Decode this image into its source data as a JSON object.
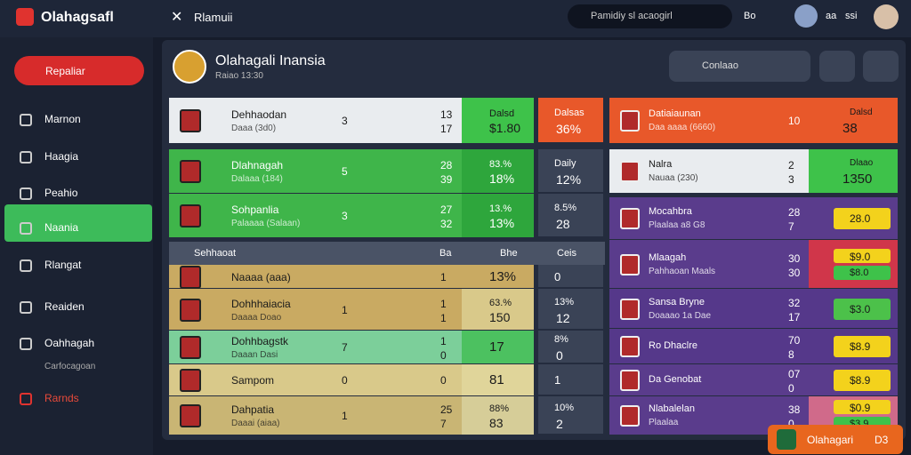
{
  "topbar": {
    "logo": "Olahagsafl",
    "tab": "Rlamuii",
    "search": "Pamidiy sl acaogirl",
    "icons": [
      "Bo",
      "aa",
      "ssi"
    ]
  },
  "sidebar": {
    "button": "Repaliar",
    "items": [
      {
        "label": "Marnon"
      },
      {
        "label": "Haagia"
      },
      {
        "label": "Peahio"
      },
      {
        "label": "Naania"
      },
      {
        "label": "Rlangat"
      },
      {
        "label": "Reaiden"
      },
      {
        "label": "Oahhagah",
        "sub": "Carfocagoan"
      },
      {
        "label": "Rarnds"
      }
    ]
  },
  "header": {
    "title": "Olahagali Inansia",
    "subtitle": "Raiao 13:30",
    "dropdown": "Conlaao"
  },
  "left_table": {
    "rows": [
      {
        "name": "Dehhaodan",
        "sub": "Daaa (3d0)",
        "n": "3",
        "a": "13",
        "b": "17",
        "v1": "Dalsd",
        "v2": "$1.80"
      },
      {
        "name": "Dlahnagah",
        "sub": "Dalaaa (184)",
        "n": "5",
        "a": "28",
        "b": "39",
        "v1": "83.%",
        "v2": "18%"
      },
      {
        "name": "Sohpanlia",
        "sub": "Palaaaa (Salaan)",
        "n": "3",
        "a": "27",
        "b": "32",
        "v1": "13.%",
        "v2": "13%"
      },
      {
        "name": "Naaaa (aaa)",
        "a": "1",
        "v1": "13%"
      },
      {
        "name": "Dohhhaiacia",
        "sub": "Daaaa Doao",
        "n": "1",
        "a": "1",
        "b": "1",
        "v1": "63.%",
        "v2": "150"
      },
      {
        "name": "Dohhbagstk",
        "sub": "Daaan Dasi",
        "n": "7",
        "a": "1",
        "b": "0",
        "v1": "17"
      },
      {
        "name": "Sampom",
        "n": "0",
        "a": "0",
        "v1": "81"
      },
      {
        "name": "Dahpatia",
        "sub": "Daaai (aiaa)",
        "n": "1",
        "a": "25",
        "b": "7",
        "v1": "88%",
        "v2": "83"
      }
    ],
    "section": {
      "label": "Sehhaoat",
      "c1": "Ba",
      "c2": "Bhe",
      "c3": "Ceis"
    }
  },
  "middle": [
    {
      "top": "Dalsas",
      "bottom": "36%"
    },
    {
      "top": "Daily",
      "bottom": "12%"
    },
    {
      "top": "8.5%",
      "bottom": "28"
    },
    {
      "top": "0"
    },
    {
      "top": "13%",
      "bottom": "12"
    },
    {
      "top": "8%",
      "bottom": "0"
    },
    {
      "top": "1"
    },
    {
      "top": "10%",
      "bottom": "2"
    }
  ],
  "right_table": [
    {
      "name": "Datiaiaunan",
      "sub": "Daa aaaa (6660)",
      "a": "10",
      "badge": "Dalsd",
      "badge2": "38"
    },
    {
      "name": "Nalra",
      "sub": "Nauaa (230)",
      "a": "2",
      "b": "3",
      "badge": "Dlaao",
      "badge2": "1350"
    },
    {
      "name": "Mocahbra",
      "sub": "Plaalaa a8 G8",
      "a": "28",
      "b": "7",
      "badge": "28.0"
    },
    {
      "name": "Mlaagah",
      "sub": "Pahhaoan Maals",
      "a": "30",
      "b": "30",
      "badge": "$9.0",
      "badge2": "$8.0"
    },
    {
      "name": "Sansa Bryne",
      "sub": "Doaaao 1a Dae",
      "a": "32",
      "b": "17",
      "badge": "$3.0"
    },
    {
      "name": "Ro Dhaclre",
      "a": "70",
      "b": "8",
      "badge": "$8.9"
    },
    {
      "name": "Da Genobat",
      "a": "07",
      "b": "0",
      "badge": "$8.9"
    },
    {
      "name": "Nlabalelan",
      "sub": "Plaalaa",
      "a": "38",
      "b": "0",
      "badge": "$0.9",
      "badge2": "$3.9"
    }
  ],
  "float_button": {
    "label": "Olahagari",
    "tag": "D3"
  }
}
